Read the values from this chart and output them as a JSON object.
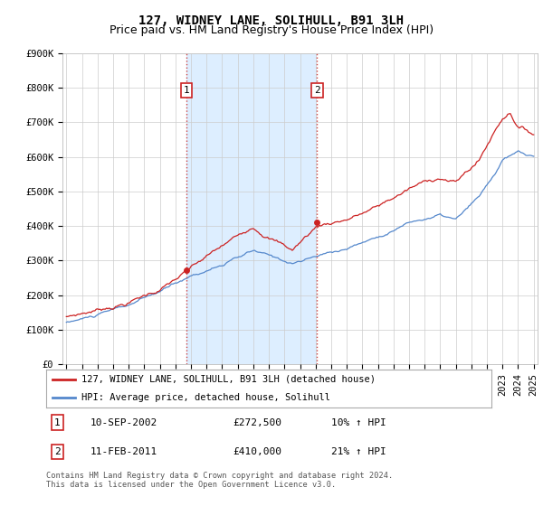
{
  "title": "127, WIDNEY LANE, SOLIHULL, B91 3LH",
  "subtitle": "Price paid vs. HM Land Registry's House Price Index (HPI)",
  "ylabel_ticks": [
    "£0",
    "£100K",
    "£200K",
    "£300K",
    "£400K",
    "£500K",
    "£600K",
    "£700K",
    "£800K",
    "£900K"
  ],
  "ytick_values": [
    0,
    100000,
    200000,
    300000,
    400000,
    500000,
    600000,
    700000,
    800000,
    900000
  ],
  "ylim": [
    0,
    900000
  ],
  "xlim_start": 1994.75,
  "xlim_end": 2025.25,
  "xtick_years": [
    1995,
    1996,
    1997,
    1998,
    1999,
    2000,
    2001,
    2002,
    2003,
    2004,
    2005,
    2006,
    2007,
    2008,
    2009,
    2010,
    2011,
    2012,
    2013,
    2014,
    2015,
    2016,
    2017,
    2018,
    2019,
    2020,
    2021,
    2022,
    2023,
    2024,
    2025
  ],
  "plot_bg_color": "#ffffff",
  "figure_bg_color": "#ffffff",
  "grid_color": "#cccccc",
  "red_line_color": "#cc2222",
  "blue_line_color": "#5588cc",
  "vline_color": "#cc4444",
  "shade_color": "#ddeeff",
  "transaction1_x": 2002.7,
  "transaction1_y": 272500,
  "transaction2_x": 2011.1,
  "transaction2_y": 410000,
  "legend_line1": "127, WIDNEY LANE, SOLIHULL, B91 3LH (detached house)",
  "legend_line2": "HPI: Average price, detached house, Solihull",
  "table_row1": [
    "1",
    "10-SEP-2002",
    "£272,500",
    "10% ↑ HPI"
  ],
  "table_row2": [
    "2",
    "11-FEB-2011",
    "£410,000",
    "21% ↑ HPI"
  ],
  "footer_text": "Contains HM Land Registry data © Crown copyright and database right 2024.\nThis data is licensed under the Open Government Licence v3.0.",
  "title_fontsize": 10,
  "subtitle_fontsize": 9,
  "tick_fontsize": 7.5
}
